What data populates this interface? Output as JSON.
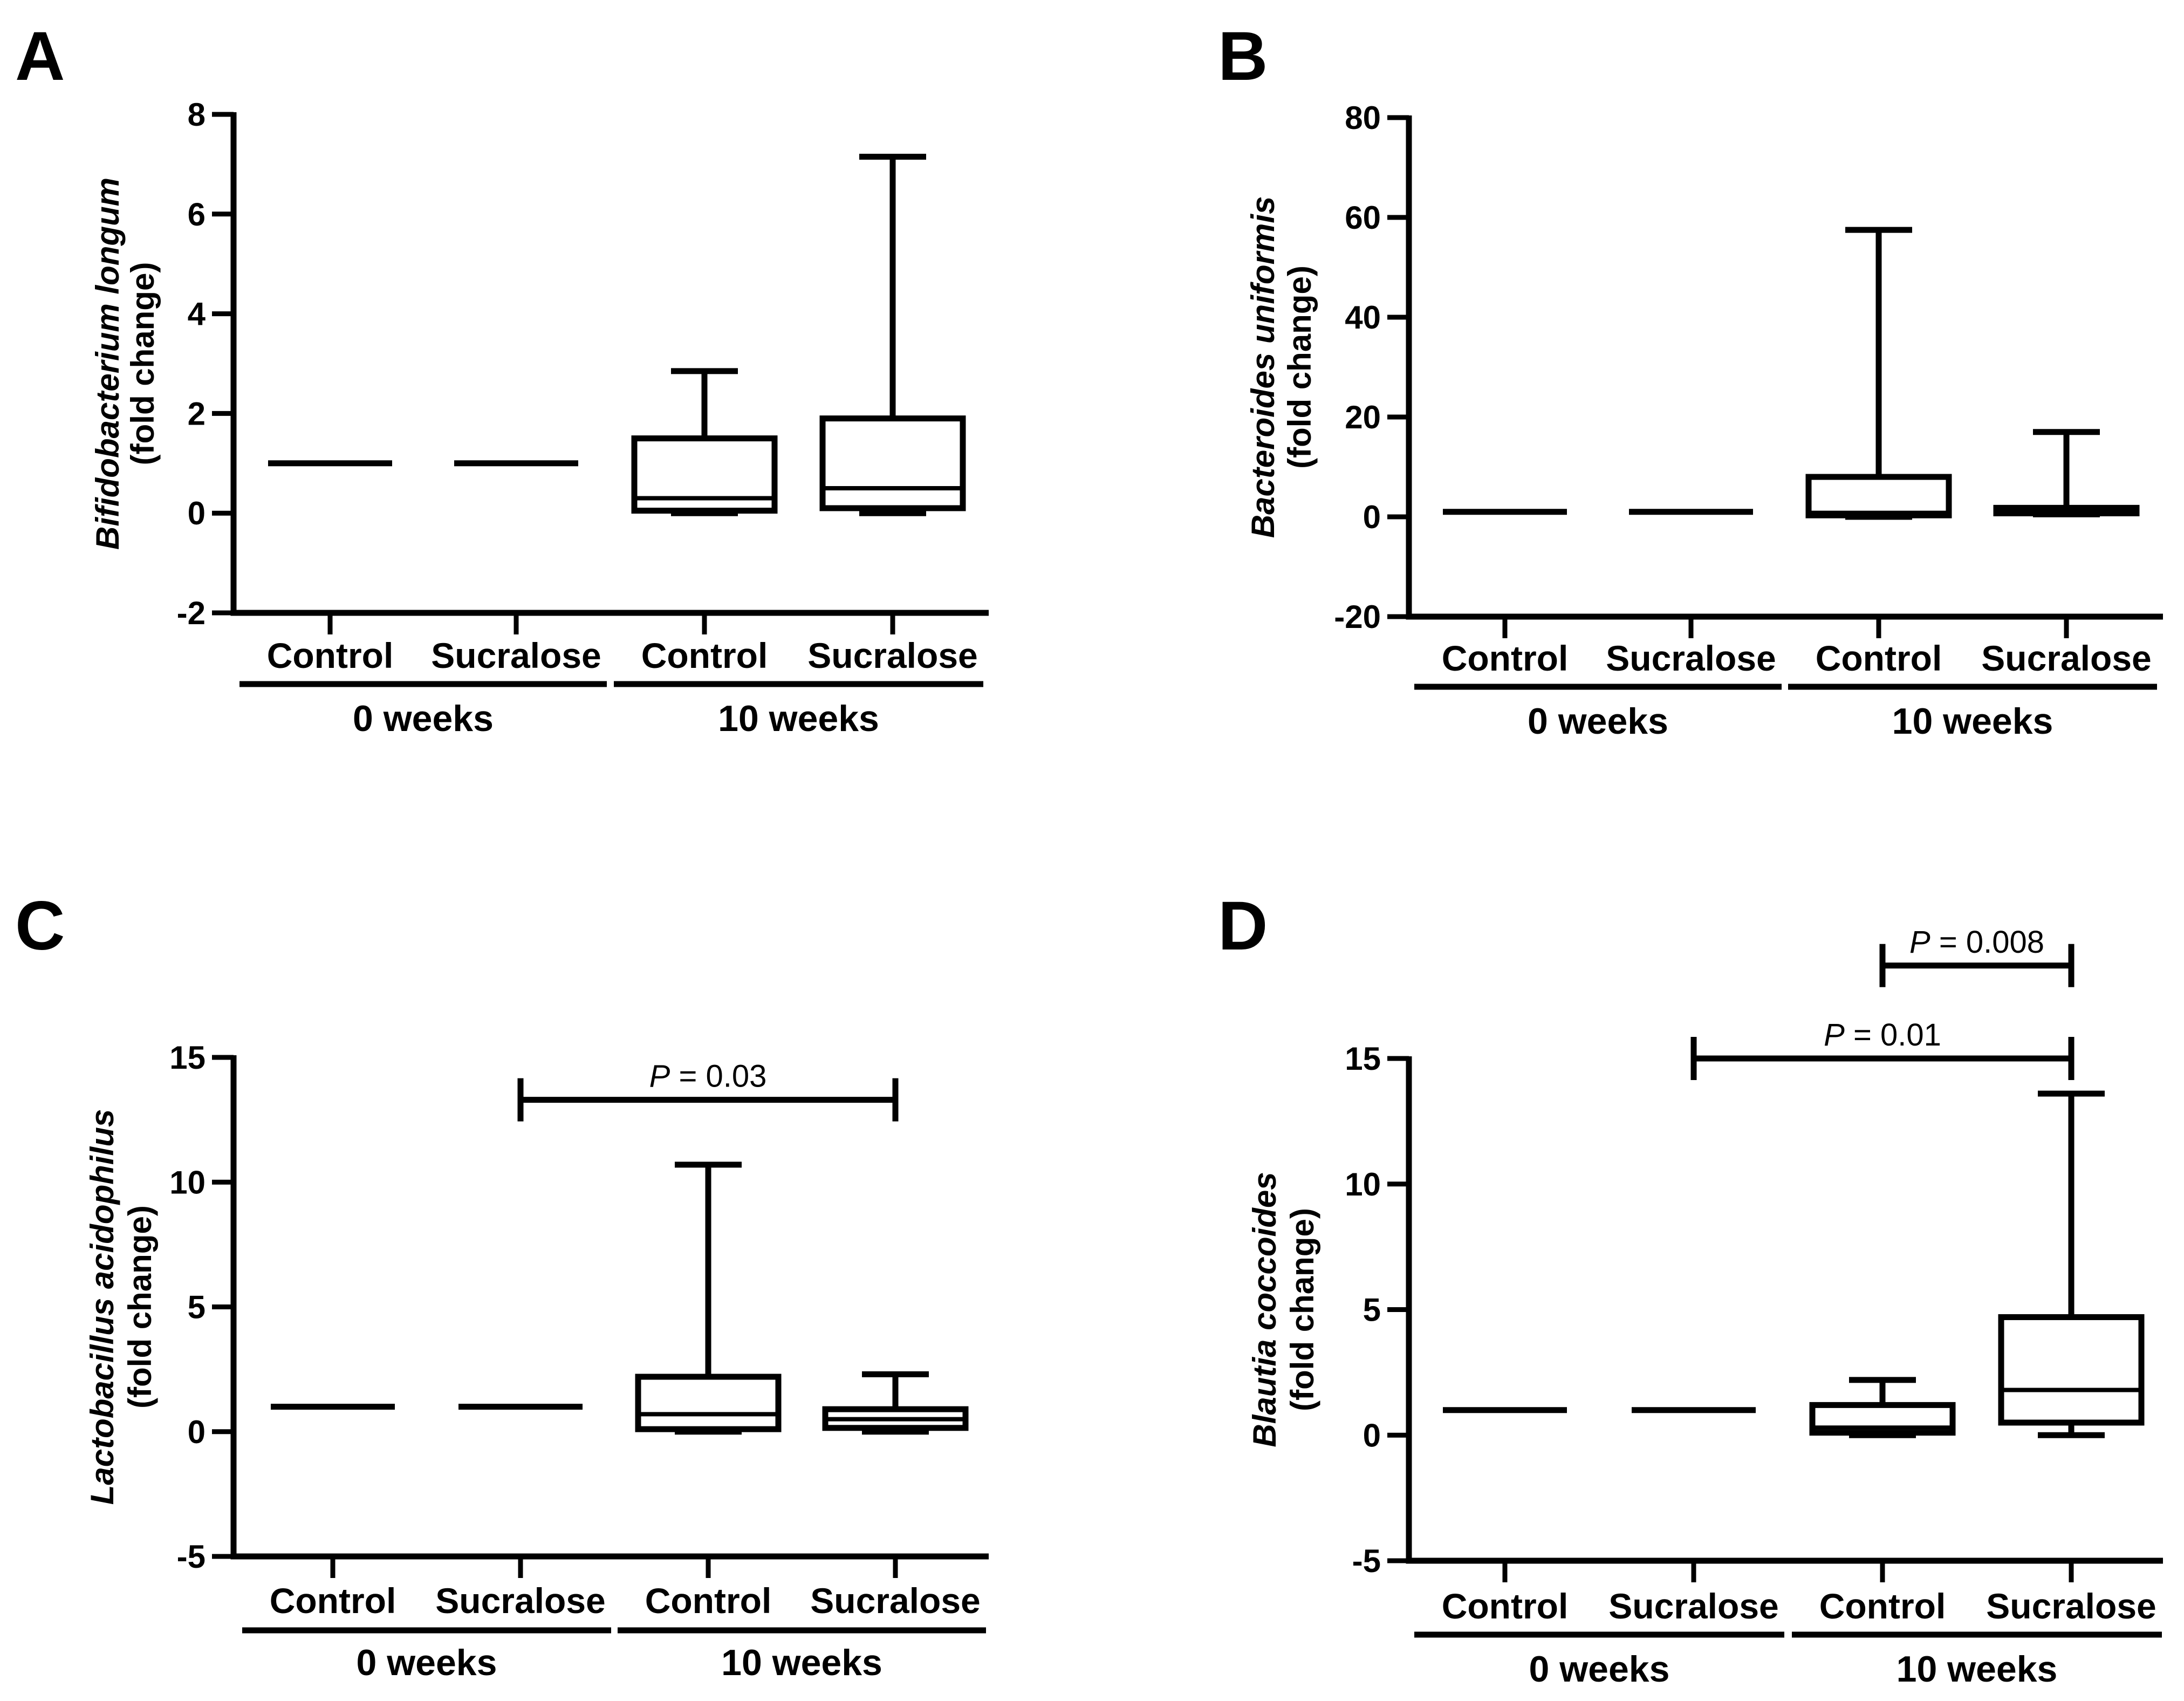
{
  "chart_data": [
    {
      "panel": "A",
      "type": "box",
      "ylabel_species": "Bifidobacterium longum",
      "ylabel_unit": "(fold change)",
      "ylim": [
        -2,
        8
      ],
      "yticks": [
        -2,
        0,
        2,
        4,
        6,
        8
      ],
      "categories": [
        "Control",
        "Sucralose",
        "Control",
        "Sucralose"
      ],
      "groups": [
        {
          "label": "0 weeks",
          "from": 0,
          "to": 1
        },
        {
          "label": "10 weeks",
          "from": 2,
          "to": 3
        }
      ],
      "boxes": [
        {
          "min": 1,
          "q1": 1,
          "median": 1,
          "q3": 1,
          "max": 1
        },
        {
          "min": 1,
          "q1": 1,
          "median": 1,
          "q3": 1,
          "max": 1
        },
        {
          "min": 0,
          "q1": 0.05,
          "median": 0.3,
          "q3": 1.5,
          "max": 2.85
        },
        {
          "min": 0,
          "q1": 0.1,
          "median": 0.5,
          "q3": 1.9,
          "max": 7.15
        }
      ],
      "significance": []
    },
    {
      "panel": "B",
      "type": "box",
      "ylabel_species": "Bacteroides uniformis",
      "ylabel_unit": "(fold change)",
      "ylim": [
        -20,
        80
      ],
      "yticks": [
        -20,
        0,
        20,
        40,
        60,
        80
      ],
      "categories": [
        "Control",
        "Sucralose",
        "Control",
        "Sucralose"
      ],
      "groups": [
        {
          "label": "0 weeks",
          "from": 0,
          "to": 1
        },
        {
          "label": "10 weeks",
          "from": 2,
          "to": 3
        }
      ],
      "boxes": [
        {
          "min": 1,
          "q1": 1,
          "median": 1,
          "q3": 1,
          "max": 1
        },
        {
          "min": 1,
          "q1": 1,
          "median": 1,
          "q3": 1,
          "max": 1
        },
        {
          "min": 0,
          "q1": 0.3,
          "median": 0.8,
          "q3": 8,
          "max": 57.5
        },
        {
          "min": 0.5,
          "q1": 0.7,
          "median": 1,
          "q3": 1.8,
          "max": 17
        }
      ],
      "significance": []
    },
    {
      "panel": "C",
      "type": "box",
      "ylabel_species": "Lactobacillus acidophilus",
      "ylabel_unit": "(fold change)",
      "ylim": [
        -5,
        15
      ],
      "yticks": [
        -5,
        0,
        5,
        10,
        15
      ],
      "categories": [
        "Control",
        "Sucralose",
        "Control",
        "Sucralose"
      ],
      "groups": [
        {
          "label": "0 weeks",
          "from": 0,
          "to": 1
        },
        {
          "label": "10 weeks",
          "from": 2,
          "to": 3
        }
      ],
      "boxes": [
        {
          "min": 1,
          "q1": 1,
          "median": 1,
          "q3": 1,
          "max": 1
        },
        {
          "min": 1,
          "q1": 1,
          "median": 1,
          "q3": 1,
          "max": 1
        },
        {
          "min": 0,
          "q1": 0.1,
          "median": 0.7,
          "q3": 2.2,
          "max": 10.7
        },
        {
          "min": 0,
          "q1": 0.15,
          "median": 0.5,
          "q3": 0.9,
          "max": 2.3
        }
      ],
      "significance": [
        {
          "p_prefix": "P",
          "p_text": " = 0.03",
          "from": 1,
          "to": 3,
          "y": 13.3
        }
      ]
    },
    {
      "panel": "D",
      "type": "box",
      "ylabel_species": "Blautia coccoides",
      "ylabel_unit": "(fold change)",
      "ylim": [
        -5,
        15
      ],
      "yticks": [
        -5,
        0,
        5,
        10,
        15
      ],
      "categories": [
        "Control",
        "Sucralose",
        "Control",
        "Sucralose"
      ],
      "groups": [
        {
          "label": "0 weeks",
          "from": 0,
          "to": 1
        },
        {
          "label": "10 weeks",
          "from": 2,
          "to": 3
        }
      ],
      "boxes": [
        {
          "min": 1,
          "q1": 1,
          "median": 1,
          "q3": 1,
          "max": 1
        },
        {
          "min": 1,
          "q1": 1,
          "median": 1,
          "q3": 1,
          "max": 1
        },
        {
          "min": 0,
          "q1": 0.1,
          "median": 0.3,
          "q3": 1.2,
          "max": 2.2
        },
        {
          "min": 0,
          "q1": 0.5,
          "median": 1.8,
          "q3": 4.7,
          "max": 13.6
        }
      ],
      "significance": [
        {
          "p_prefix": "P",
          "p_text": " = 0.008",
          "from": 2,
          "to": 3,
          "y": 18.7
        },
        {
          "p_prefix": "P",
          "p_text": " = 0.01",
          "from": 1,
          "to": 3,
          "y": 15
        }
      ]
    }
  ]
}
